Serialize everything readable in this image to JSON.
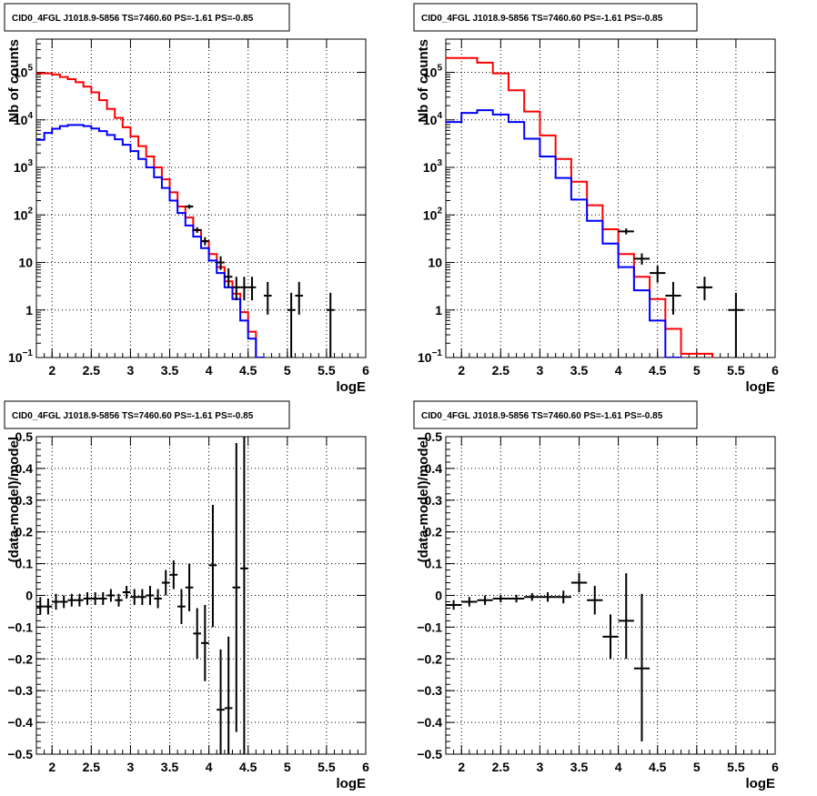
{
  "chart_data": [
    {
      "type": "histogram",
      "title": "CID0_4FGL J1018.9-5856 TS=7460.60 PS=-1.61 PS=-0.85",
      "xlabel": "logE",
      "ylabel": "Nb of counts",
      "xlim": [
        1.8,
        6
      ],
      "ylim": [
        0.1,
        500000
      ],
      "yscale": "log",
      "grid": true,
      "x_ticks": [
        "2",
        "2.5",
        "3",
        "3.5",
        "4",
        "4.5",
        "5",
        "5.5",
        "6"
      ],
      "y_ticks": [
        {
          "v": 0.1,
          "label": "10",
          "sup": "−1"
        },
        {
          "v": 1,
          "label": "1",
          "sup": ""
        },
        {
          "v": 10,
          "label": "10",
          "sup": ""
        },
        {
          "v": 100,
          "label": "10",
          "sup": "2"
        },
        {
          "v": 1000,
          "label": "10",
          "sup": "3"
        },
        {
          "v": 10000,
          "label": "10",
          "sup": "4"
        },
        {
          "v": 100000,
          "label": "10",
          "sup": "5"
        }
      ],
      "bin_edges": [
        1.8,
        1.9,
        2.0,
        2.1,
        2.2,
        2.3,
        2.4,
        2.5,
        2.6,
        2.7,
        2.8,
        2.9,
        3.0,
        3.1,
        3.2,
        3.3,
        3.4,
        3.5,
        3.6,
        3.7,
        3.8,
        3.9,
        4.0,
        4.1,
        4.2,
        4.3,
        4.4,
        4.5,
        4.6,
        4.7,
        4.8,
        4.9,
        5.0,
        5.1,
        5.2,
        5.3,
        5.4,
        5.5,
        5.6,
        5.7,
        5.8,
        5.9,
        6.0
      ],
      "series": [
        {
          "color": "#ff0000",
          "style": "step",
          "values": [
            95000,
            95000,
            90000,
            80000,
            72000,
            62000,
            50000,
            38000,
            26000,
            17000,
            11000,
            7000,
            4500,
            2800,
            1700,
            1000,
            560,
            300,
            150,
            88,
            48,
            28,
            15,
            8,
            4,
            2.2,
            0.9,
            0.35,
            0.1,
            0.05,
            0.05,
            0.05,
            0.05,
            0.05,
            0.05,
            0.05,
            0.05,
            0.05,
            0.05,
            0.05,
            0.05,
            0.05
          ]
        },
        {
          "color": "#0000ff",
          "style": "step",
          "values": [
            3800,
            5300,
            6500,
            7400,
            7800,
            7800,
            7400,
            6600,
            5800,
            4800,
            3900,
            3000,
            2200,
            1500,
            1000,
            620,
            370,
            200,
            110,
            60,
            35,
            20,
            11,
            6,
            3,
            1.7,
            0.6,
            0.25,
            0.1,
            0.05,
            0.05,
            0.05,
            0.05,
            0.05,
            0.05,
            0.05,
            0.05,
            0.05,
            0.05,
            0.05,
            0.05,
            0.05
          ]
        },
        {
          "color": "#000000",
          "style": "points",
          "points": [
            {
              "x": 3.75,
              "y": 150,
              "hw": 0.05,
              "lo": 135,
              "hi": 165
            },
            {
              "x": 3.85,
              "y": 48,
              "hw": 0.05,
              "lo": 42,
              "hi": 55
            },
            {
              "x": 3.95,
              "y": 28,
              "hw": 0.05,
              "lo": 23,
              "hi": 34
            },
            {
              "x": 4.15,
              "y": 10,
              "hw": 0.05,
              "lo": 7,
              "hi": 13.5
            },
            {
              "x": 4.25,
              "y": 5,
              "hw": 0.05,
              "lo": 3,
              "hi": 7.5
            },
            {
              "x": 4.35,
              "y": 3,
              "hw": 0.05,
              "lo": 1.6,
              "hi": 5
            },
            {
              "x": 4.45,
              "y": 3,
              "hw": 0.05,
              "lo": 1.6,
              "hi": 5
            },
            {
              "x": 4.55,
              "y": 3,
              "hw": 0.05,
              "lo": 1.6,
              "hi": 5
            },
            {
              "x": 4.75,
              "y": 2,
              "hw": 0.05,
              "lo": 0.8,
              "hi": 3.9
            },
            {
              "x": 5.05,
              "y": 1,
              "hw": 0.05,
              "lo": 0.1,
              "hi": 2.3
            },
            {
              "x": 5.15,
              "y": 2,
              "hw": 0.05,
              "lo": 0.8,
              "hi": 3.9
            },
            {
              "x": 5.55,
              "y": 1,
              "hw": 0.05,
              "lo": 0.1,
              "hi": 2.3
            }
          ]
        }
      ]
    },
    {
      "type": "histogram",
      "title": "CID0_4FGL J1018.9-5856 TS=7460.60 PS=-1.61 PS=-0.85",
      "xlabel": "logE",
      "ylabel": "Nb of counts",
      "xlim": [
        1.8,
        6
      ],
      "ylim": [
        0.1,
        500000
      ],
      "yscale": "log",
      "grid": true,
      "x_ticks": [
        "2",
        "2.5",
        "3",
        "3.5",
        "4",
        "4.5",
        "5",
        "5.5",
        "6"
      ],
      "y_ticks": [
        {
          "v": 0.1,
          "label": "10",
          "sup": "−1"
        },
        {
          "v": 1,
          "label": "1",
          "sup": ""
        },
        {
          "v": 10,
          "label": "10",
          "sup": ""
        },
        {
          "v": 100,
          "label": "10",
          "sup": "2"
        },
        {
          "v": 1000,
          "label": "10",
          "sup": "3"
        },
        {
          "v": 10000,
          "label": "10",
          "sup": "4"
        },
        {
          "v": 100000,
          "label": "10",
          "sup": "5"
        }
      ],
      "bin_edges": [
        1.8,
        2.0,
        2.2,
        2.4,
        2.6,
        2.8,
        3.0,
        3.2,
        3.4,
        3.6,
        3.8,
        4.0,
        4.2,
        4.4,
        4.6,
        4.8,
        5.0,
        5.2,
        5.4,
        5.6,
        5.8,
        6.0
      ],
      "series": [
        {
          "color": "#ff0000",
          "style": "step",
          "values": [
            200000,
            200000,
            160000,
            95000,
            42000,
            15000,
            4700,
            1500,
            500,
            160,
            50,
            15,
            5,
            1.7,
            0.4,
            0.12,
            0.12,
            0.05,
            0.05,
            0.05,
            0.05
          ]
        },
        {
          "color": "#0000ff",
          "style": "step",
          "values": [
            9000,
            14000,
            16000,
            13000,
            9000,
            4000,
            1700,
            600,
            210,
            75,
            25,
            8,
            2.6,
            0.6,
            0.1,
            0.05,
            0.05,
            0.05,
            0.05,
            0.05,
            0.05
          ]
        },
        {
          "color": "#000000",
          "style": "points",
          "points": [
            {
              "x": 4.1,
              "y": 45,
              "hw": 0.1,
              "lo": 39,
              "hi": 52
            },
            {
              "x": 4.3,
              "y": 12,
              "hw": 0.1,
              "lo": 9,
              "hi": 15.5
            },
            {
              "x": 4.5,
              "y": 6,
              "hw": 0.1,
              "lo": 3.8,
              "hi": 8.5
            },
            {
              "x": 4.7,
              "y": 2,
              "hw": 0.1,
              "lo": 0.8,
              "hi": 3.9
            },
            {
              "x": 5.1,
              "y": 3,
              "hw": 0.1,
              "lo": 1.6,
              "hi": 5
            },
            {
              "x": 5.5,
              "y": 1,
              "hw": 0.1,
              "lo": 0.1,
              "hi": 2.3
            }
          ]
        }
      ]
    },
    {
      "type": "scatter",
      "title": "CID0_4FGL J1018.9-5856 TS=7460.60 PS=-1.61 PS=-0.85",
      "xlabel": "logE",
      "ylabel": "(data-model)/model",
      "xlim": [
        1.8,
        6
      ],
      "ylim": [
        -0.5,
        0.5
      ],
      "yscale": "linear",
      "grid": true,
      "x_ticks": [
        "2",
        "2.5",
        "3",
        "3.5",
        "4",
        "4.5",
        "5",
        "5.5",
        "6"
      ],
      "y_ticks": [
        {
          "v": -0.5,
          "label": "−0.5",
          "sup": ""
        },
        {
          "v": -0.4,
          "label": "−0.4",
          "sup": ""
        },
        {
          "v": -0.3,
          "label": "−0.3",
          "sup": ""
        },
        {
          "v": -0.2,
          "label": "−0.2",
          "sup": ""
        },
        {
          "v": -0.1,
          "label": "−0.1",
          "sup": ""
        },
        {
          "v": 0,
          "label": "0",
          "sup": ""
        },
        {
          "v": 0.1,
          "label": "0.1",
          "sup": ""
        },
        {
          "v": 0.2,
          "label": "0.2",
          "sup": ""
        },
        {
          "v": 0.3,
          "label": "0.3",
          "sup": ""
        },
        {
          "v": 0.4,
          "label": "0.4",
          "sup": ""
        },
        {
          "v": 0.5,
          "label": "0.5",
          "sup": ""
        }
      ],
      "series": [
        {
          "color": "#000000",
          "style": "points",
          "points": [
            {
              "x": 1.85,
              "y": -0.035,
              "hw": 0.05,
              "lo": -0.06,
              "hi": -0.005
            },
            {
              "x": 1.95,
              "y": -0.035,
              "hw": 0.05,
              "lo": -0.06,
              "hi": -0.01
            },
            {
              "x": 2.05,
              "y": -0.02,
              "hw": 0.05,
              "lo": -0.045,
              "hi": 0.005
            },
            {
              "x": 2.15,
              "y": -0.02,
              "hw": 0.05,
              "lo": -0.04,
              "hi": 0.0
            },
            {
              "x": 2.25,
              "y": -0.015,
              "hw": 0.05,
              "lo": -0.035,
              "hi": 0.005
            },
            {
              "x": 2.35,
              "y": -0.015,
              "hw": 0.05,
              "lo": -0.035,
              "hi": 0.005
            },
            {
              "x": 2.45,
              "y": -0.01,
              "hw": 0.05,
              "lo": -0.03,
              "hi": 0.01
            },
            {
              "x": 2.55,
              "y": -0.01,
              "hw": 0.05,
              "lo": -0.03,
              "hi": 0.01
            },
            {
              "x": 2.65,
              "y": -0.01,
              "hw": 0.05,
              "lo": -0.03,
              "hi": 0.01
            },
            {
              "x": 2.75,
              "y": 0.0,
              "hw": 0.05,
              "lo": -0.02,
              "hi": 0.02
            },
            {
              "x": 2.85,
              "y": -0.015,
              "hw": 0.05,
              "lo": -0.035,
              "hi": 0.005
            },
            {
              "x": 2.95,
              "y": 0.01,
              "hw": 0.05,
              "lo": -0.01,
              "hi": 0.03
            },
            {
              "x": 3.05,
              "y": -0.005,
              "hw": 0.05,
              "lo": -0.03,
              "hi": 0.02
            },
            {
              "x": 3.15,
              "y": -0.005,
              "hw": 0.05,
              "lo": -0.03,
              "hi": 0.02
            },
            {
              "x": 3.25,
              "y": 0.0,
              "hw": 0.05,
              "lo": -0.03,
              "hi": 0.03
            },
            {
              "x": 3.35,
              "y": -0.01,
              "hw": 0.05,
              "lo": -0.04,
              "hi": 0.02
            },
            {
              "x": 3.45,
              "y": 0.04,
              "hw": 0.05,
              "lo": 0.0,
              "hi": 0.08
            },
            {
              "x": 3.55,
              "y": 0.065,
              "hw": 0.05,
              "lo": 0.02,
              "hi": 0.11
            },
            {
              "x": 3.65,
              "y": -0.035,
              "hw": 0.05,
              "lo": -0.09,
              "hi": 0.02
            },
            {
              "x": 3.75,
              "y": 0.025,
              "hw": 0.05,
              "lo": -0.05,
              "hi": 0.1
            },
            {
              "x": 3.85,
              "y": -0.12,
              "hw": 0.05,
              "lo": -0.2,
              "hi": -0.04
            },
            {
              "x": 3.95,
              "y": -0.15,
              "hw": 0.05,
              "lo": -0.27,
              "hi": -0.03
            },
            {
              "x": 4.05,
              "y": 0.095,
              "hw": 0.05,
              "lo": -0.1,
              "hi": 0.285
            },
            {
              "x": 4.15,
              "y": -0.36,
              "hw": 0.05,
              "lo": -0.5,
              "hi": -0.17
            },
            {
              "x": 4.25,
              "y": -0.355,
              "hw": 0.05,
              "lo": -0.5,
              "hi": -0.13
            },
            {
              "x": 4.35,
              "y": 0.025,
              "hw": 0.05,
              "lo": -0.43,
              "hi": 0.48
            },
            {
              "x": 4.45,
              "y": 0.085,
              "hw": 0.05,
              "lo": -0.5,
              "hi": 0.5
            }
          ]
        }
      ]
    },
    {
      "type": "scatter",
      "title": "CID0_4FGL J1018.9-5856 TS=7460.60 PS=-1.61 PS=-0.85",
      "xlabel": "logE",
      "ylabel": "(data-model)/model",
      "xlim": [
        1.8,
        6
      ],
      "ylim": [
        -0.5,
        0.5
      ],
      "yscale": "linear",
      "grid": true,
      "x_ticks": [
        "2",
        "2.5",
        "3",
        "3.5",
        "4",
        "4.5",
        "5",
        "5.5",
        "6"
      ],
      "y_ticks": [
        {
          "v": -0.5,
          "label": "−0.5",
          "sup": ""
        },
        {
          "v": -0.4,
          "label": "−0.4",
          "sup": ""
        },
        {
          "v": -0.3,
          "label": "−0.3",
          "sup": ""
        },
        {
          "v": -0.2,
          "label": "−0.2",
          "sup": ""
        },
        {
          "v": -0.1,
          "label": "−0.1",
          "sup": ""
        },
        {
          "v": 0,
          "label": "0",
          "sup": ""
        },
        {
          "v": 0.1,
          "label": "0.1",
          "sup": ""
        },
        {
          "v": 0.2,
          "label": "0.2",
          "sup": ""
        },
        {
          "v": 0.3,
          "label": "0.3",
          "sup": ""
        },
        {
          "v": 0.4,
          "label": "0.4",
          "sup": ""
        },
        {
          "v": 0.5,
          "label": "0.5",
          "sup": ""
        }
      ],
      "series": [
        {
          "color": "#000000",
          "style": "points",
          "points": [
            {
              "x": 1.9,
              "y": -0.03,
              "hw": 0.1,
              "lo": -0.045,
              "hi": -0.015
            },
            {
              "x": 2.1,
              "y": -0.02,
              "hw": 0.1,
              "lo": -0.035,
              "hi": -0.005
            },
            {
              "x": 2.3,
              "y": -0.015,
              "hw": 0.1,
              "lo": -0.03,
              "hi": 0.0
            },
            {
              "x": 2.5,
              "y": -0.01,
              "hw": 0.1,
              "lo": -0.022,
              "hi": 0.002
            },
            {
              "x": 2.7,
              "y": -0.01,
              "hw": 0.1,
              "lo": -0.022,
              "hi": 0.002
            },
            {
              "x": 2.9,
              "y": -0.005,
              "hw": 0.1,
              "lo": -0.017,
              "hi": 0.007
            },
            {
              "x": 3.1,
              "y": -0.005,
              "hw": 0.1,
              "lo": -0.02,
              "hi": 0.01
            },
            {
              "x": 3.3,
              "y": -0.005,
              "hw": 0.1,
              "lo": -0.025,
              "hi": 0.015
            },
            {
              "x": 3.5,
              "y": 0.04,
              "hw": 0.1,
              "lo": 0.01,
              "hi": 0.07
            },
            {
              "x": 3.7,
              "y": -0.015,
              "hw": 0.1,
              "lo": -0.06,
              "hi": 0.03
            },
            {
              "x": 3.9,
              "y": -0.13,
              "hw": 0.1,
              "lo": -0.2,
              "hi": -0.06
            },
            {
              "x": 4.1,
              "y": -0.08,
              "hw": 0.1,
              "lo": -0.2,
              "hi": 0.07
            },
            {
              "x": 4.3,
              "y": -0.23,
              "hw": 0.1,
              "lo": -0.46,
              "hi": 0.005
            }
          ]
        }
      ]
    }
  ]
}
